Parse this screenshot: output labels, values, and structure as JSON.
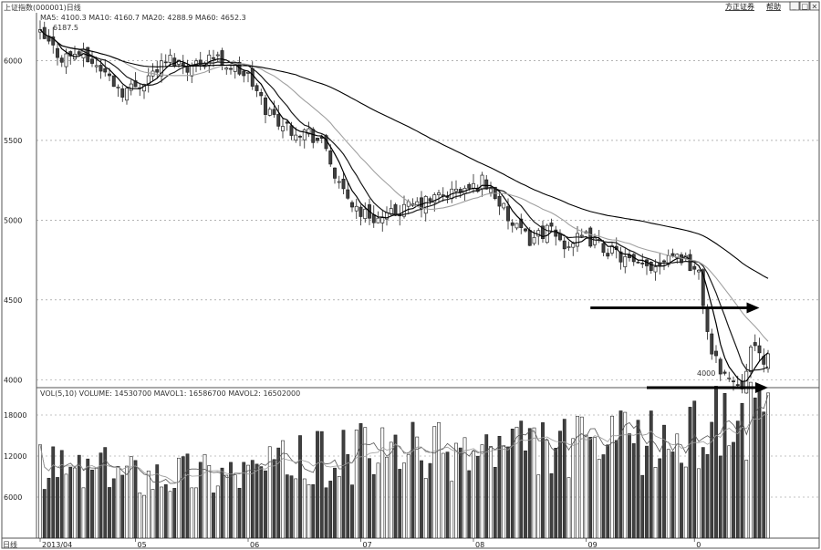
{
  "header": {
    "title": "上证指数(000001)日线",
    "ma_info": "MA5: 4100.3  MA10: 4160.7  MA20: 4288.9  MA60: 4652.3",
    "volume_info": "VOL(5,10)  VOLUME: 14530700  MAVOL1: 16586700  MAVOL2: 16502000",
    "max_label": "6187.5",
    "min_label": "4000",
    "footer_label": "日线"
  },
  "toolbar": {
    "menu1_label": "方正证券",
    "menu2_label": "帮助",
    "min_label": "_",
    "restore_label": "□",
    "close_label": "×"
  },
  "colors": {
    "up": "#ffffff",
    "down": "#404040",
    "outline": "#222222",
    "ma5": "#000000",
    "ma10": "#1a1a1a",
    "ma20": "#a0a0a0",
    "ma60": "#000000",
    "grid": "#888888",
    "arrow": "#000000"
  },
  "chart_data": {
    "type": "candlestick",
    "price_ticks": [
      {
        "label": "6000",
        "value": 6000
      },
      {
        "label": "5500",
        "value": 5500
      },
      {
        "label": "5000",
        "value": 5000
      },
      {
        "label": "4500",
        "value": 4500
      },
      {
        "label": "4000",
        "value": 4000
      }
    ],
    "price_range": [
      3950,
      6300
    ],
    "volume_ticks": [
      {
        "label": "18000",
        "value": 18000
      },
      {
        "label": "12000",
        "value": 12000
      },
      {
        "label": "6000",
        "value": 6000
      }
    ],
    "volume_range": [
      0,
      20000
    ],
    "x_labels": [
      {
        "label": "2013/04",
        "index": 0
      },
      {
        "label": "05",
        "index": 22
      },
      {
        "label": "06",
        "index": 48
      },
      {
        "label": "07",
        "index": 74
      },
      {
        "label": "08",
        "index": 100
      },
      {
        "label": "09",
        "index": 126
      },
      {
        "label": "0",
        "index": 151
      }
    ],
    "anchors": [
      [
        0,
        6160
      ],
      [
        5,
        6020
      ],
      [
        9,
        6050
      ],
      [
        14,
        5950
      ],
      [
        19,
        5810
      ],
      [
        22,
        5840
      ],
      [
        27,
        5950
      ],
      [
        30,
        6010
      ],
      [
        35,
        5960
      ],
      [
        39,
        6040
      ],
      [
        43,
        5980
      ],
      [
        48,
        5900
      ],
      [
        52,
        5700
      ],
      [
        57,
        5580
      ],
      [
        62,
        5550
      ],
      [
        66,
        5450
      ],
      [
        69,
        5200
      ],
      [
        74,
        5050
      ],
      [
        79,
        5000
      ],
      [
        83,
        5060
      ],
      [
        88,
        5100
      ],
      [
        92,
        5150
      ],
      [
        96,
        5180
      ],
      [
        100,
        5200
      ],
      [
        102,
        5250
      ],
      [
        105,
        5160
      ],
      [
        109,
        4960
      ],
      [
        113,
        4880
      ],
      [
        117,
        4940
      ],
      [
        121,
        4850
      ],
      [
        126,
        4890
      ],
      [
        130,
        4830
      ],
      [
        134,
        4770
      ],
      [
        138,
        4700
      ],
      [
        142,
        4720
      ],
      [
        145,
        4800
      ],
      [
        149,
        4760
      ],
      [
        152,
        4650
      ],
      [
        155,
        4150
      ],
      [
        159,
        4000
      ],
      [
        162,
        3980
      ],
      [
        164,
        4200
      ],
      [
        166,
        4150
      ],
      [
        168,
        4130
      ]
    ],
    "volume_profile": [
      [
        0,
        10000
      ],
      [
        22,
        9500
      ],
      [
        48,
        9800
      ],
      [
        74,
        12000
      ],
      [
        100,
        12500
      ],
      [
        126,
        13000
      ],
      [
        150,
        14000
      ],
      [
        155,
        17500
      ],
      [
        168,
        16000
      ]
    ],
    "arrows": [
      {
        "name": "support-arrow-upper",
        "from_index": 127,
        "to_index": 166,
        "value": 4450
      },
      {
        "name": "support-arrow-lower",
        "from_index": 140,
        "to_index": 168,
        "value": 3950
      }
    ]
  }
}
